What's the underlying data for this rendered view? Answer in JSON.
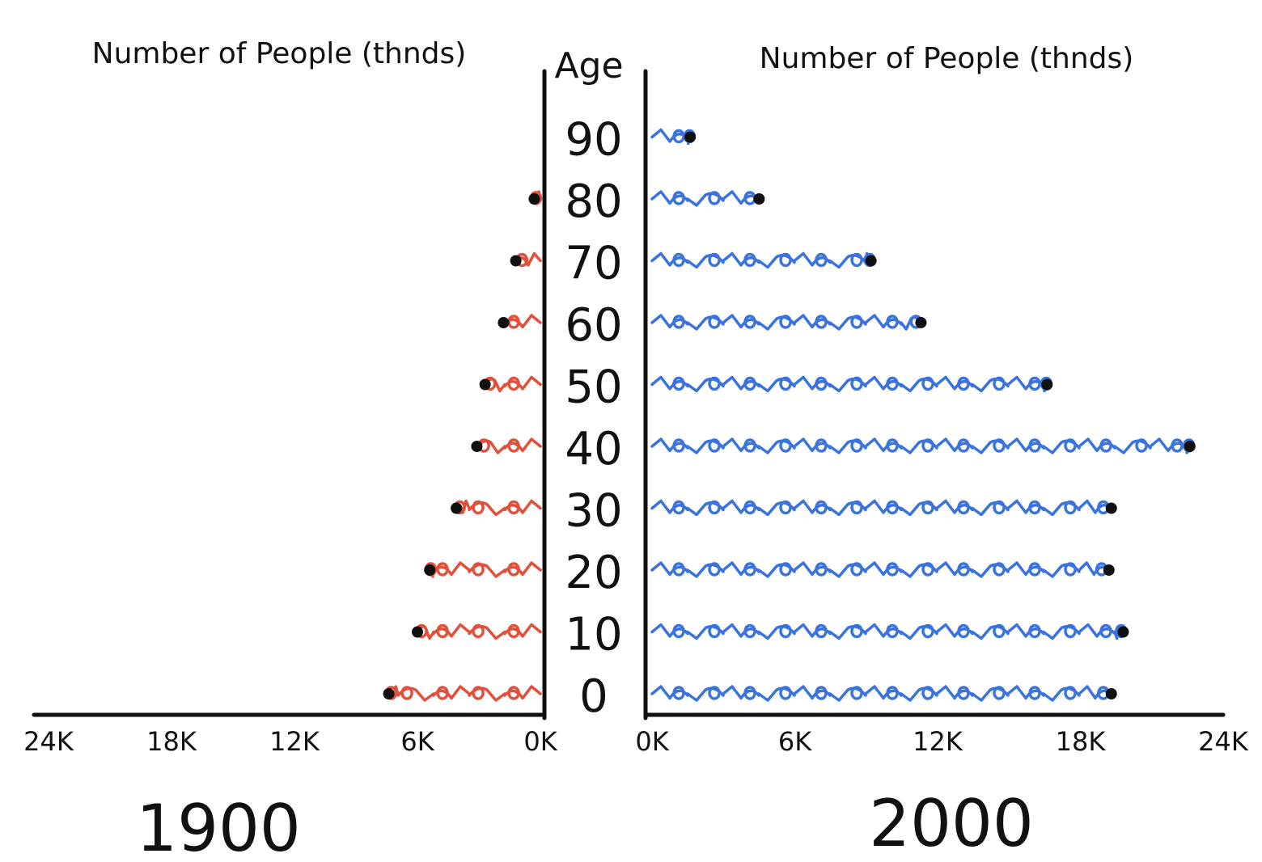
{
  "chart_data": {
    "type": "bar",
    "subtype": "population-pyramid-pictograph",
    "center_axis_label": "Age",
    "categories": [
      "0",
      "10",
      "20",
      "30",
      "40",
      "50",
      "60",
      "70",
      "80",
      "90"
    ],
    "series": [
      {
        "name": "1900",
        "side": "left",
        "values": [
          7400,
          6000,
          5400,
          4100,
          3100,
          2700,
          1800,
          1200,
          300,
          0
        ],
        "color": "#e0503a",
        "axis_label": "Number of People (thnds)",
        "ticks": [
          "24K",
          "18K",
          "12K",
          "6K",
          "0K"
        ],
        "xlim": [
          0,
          24000
        ]
      },
      {
        "name": "2000",
        "side": "right",
        "values": [
          19300,
          19800,
          19200,
          19300,
          22600,
          16600,
          11300,
          9200,
          4500,
          1600
        ],
        "color": "#3a73e0",
        "axis_label": "Number of People (thnds)",
        "ticks": [
          "0K",
          "6K",
          "12K",
          "18K",
          "24K"
        ],
        "xlim": [
          0,
          24000
        ]
      }
    ],
    "colors": {
      "marker": "#111111",
      "axis": "#111111"
    }
  }
}
